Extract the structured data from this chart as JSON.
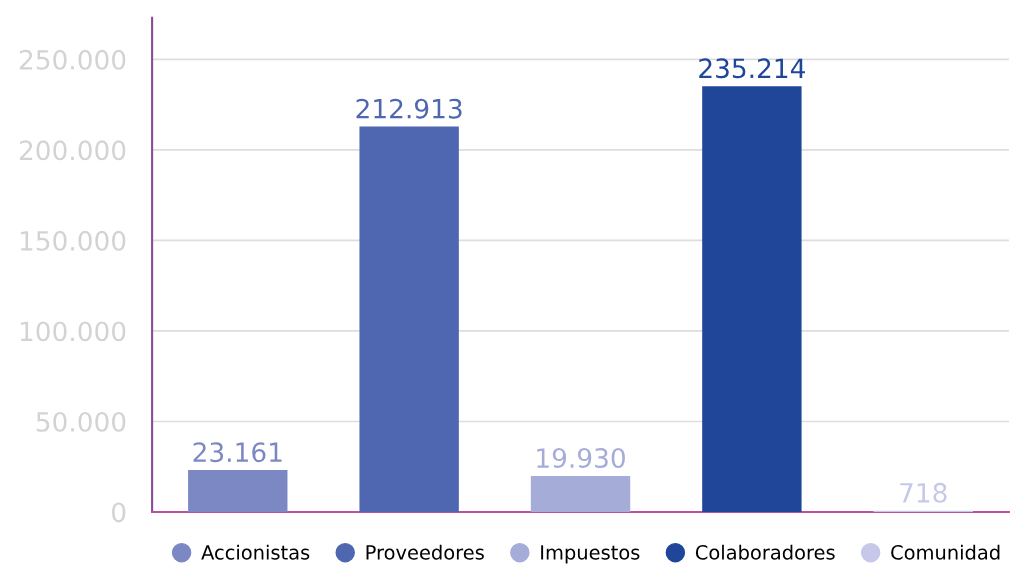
{
  "chart_data": {
    "type": "bar",
    "categories": [
      null,
      null,
      null,
      null,
      null
    ],
    "series": [
      {
        "name": "Accionistas",
        "color": "#7b88c4",
        "values": [
          23161,
          null,
          null,
          null,
          null
        ],
        "value_labels": [
          "23.161",
          null,
          null,
          null,
          null
        ]
      },
      {
        "name": "Proveedores",
        "color": "#4f67b0",
        "values": [
          null,
          212913,
          null,
          null,
          null
        ],
        "value_labels": [
          null,
          "212.913",
          null,
          null,
          null
        ]
      },
      {
        "name": "Impuestos",
        "color": "#a6acd8",
        "values": [
          null,
          null,
          19930,
          null,
          null
        ],
        "value_labels": [
          null,
          null,
          "19.930",
          null,
          null
        ]
      },
      {
        "name": "Colaboradores",
        "color": "#1f4698",
        "values": [
          null,
          null,
          null,
          235214,
          null
        ],
        "value_labels": [
          null,
          null,
          null,
          "235.214",
          null
        ]
      },
      {
        "name": "Comunidad",
        "color": "#c5c8e8",
        "values": [
          null,
          null,
          null,
          null,
          718
        ],
        "value_labels": [
          null,
          null,
          null,
          null,
          "718"
        ]
      }
    ],
    "ylim": [
      0,
      273000
    ],
    "yticks": [
      {
        "value": 0,
        "label": "0"
      },
      {
        "value": 50000,
        "label": "50.000"
      },
      {
        "value": 100000,
        "label": "100.000"
      },
      {
        "value": 150000,
        "label": "150.000"
      },
      {
        "value": 200000,
        "label": "200.000"
      },
      {
        "value": 250000,
        "label": "250.000"
      }
    ],
    "grid": "y",
    "legend": "bottom",
    "marker": "circle"
  }
}
